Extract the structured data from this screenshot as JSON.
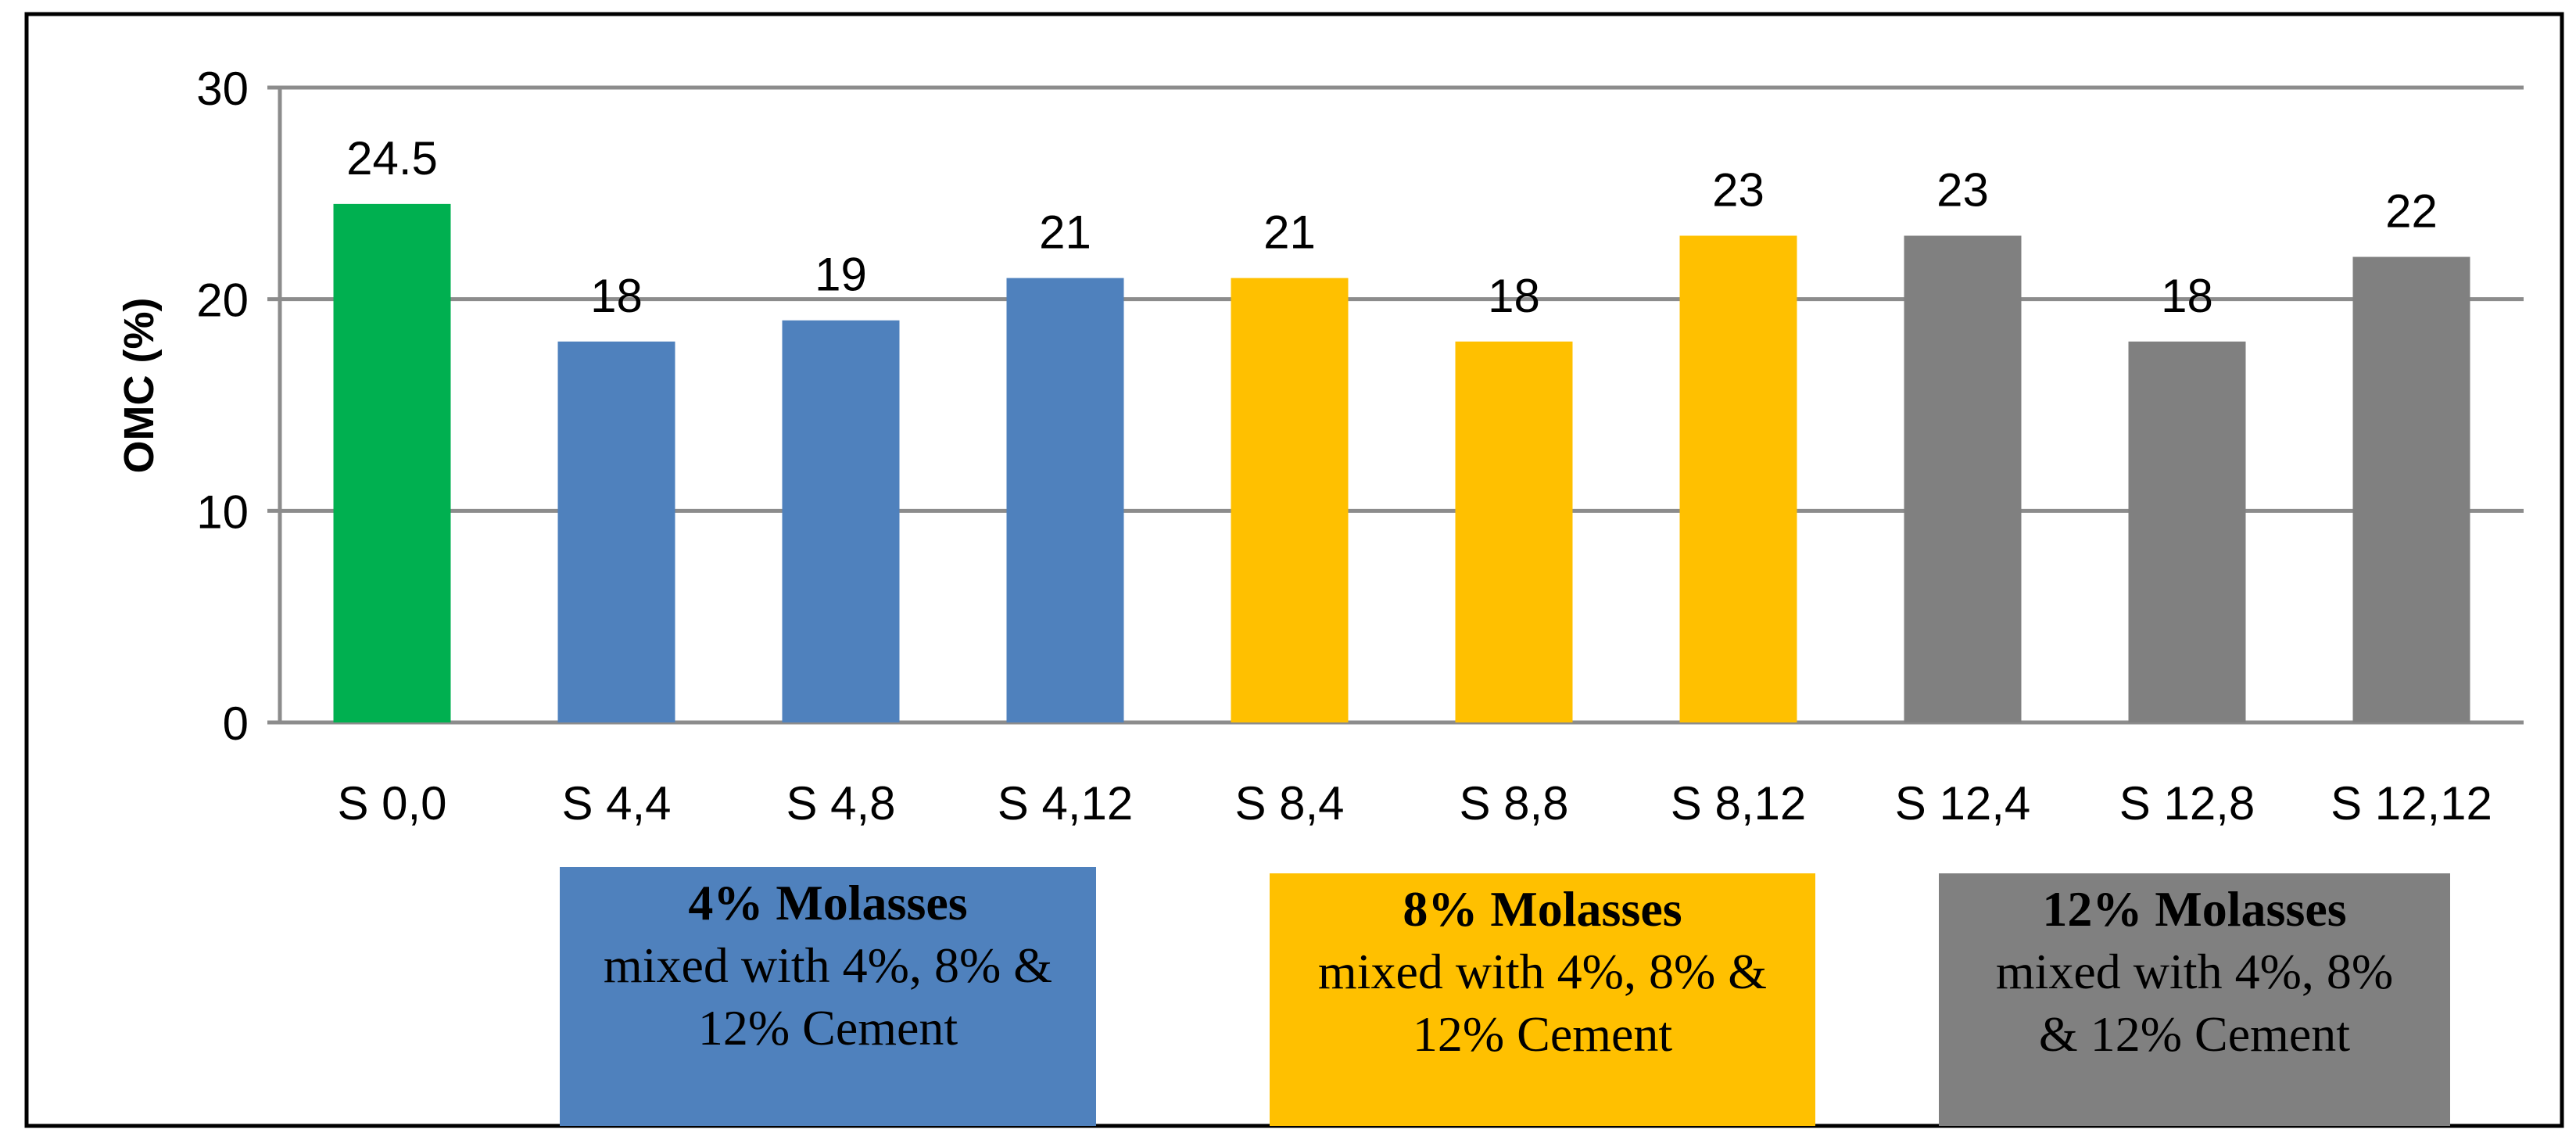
{
  "chart_data": {
    "type": "bar",
    "title": "",
    "xlabel": "",
    "ylabel": "OMC (%)",
    "ylim": [
      0,
      30
    ],
    "yticks": [
      0,
      10,
      20,
      30
    ],
    "grid": true,
    "categories": [
      "S 0,0",
      "S 4,4",
      "S 4,8",
      "S 4,12",
      "S 8,4",
      "S 8,8",
      "S 8,12",
      "S 12,4",
      "S 12,8",
      "S 12,12"
    ],
    "values": [
      24.5,
      18,
      19,
      21,
      21,
      18,
      23,
      23,
      18,
      22
    ],
    "data_labels": [
      "24.5",
      "18",
      "19",
      "21",
      "21",
      "18",
      "23",
      "23",
      "18",
      "22"
    ],
    "bar_colors": [
      "#00b050",
      "#4f81bd",
      "#4f81bd",
      "#4f81bd",
      "#ffc000",
      "#ffc000",
      "#ffc000",
      "#808080",
      "#808080",
      "#808080"
    ]
  },
  "legend": [
    {
      "title": "4%  Molasses",
      "desc": "mixed with 4%, 8% & 12% Cement",
      "color": "#4f81bd"
    },
    {
      "title": "8% Molasses",
      "desc": "mixed with 4%, 8% & 12% Cement",
      "color": "#ffc000"
    },
    {
      "title": "12% Molasses",
      "desc": "mixed with 4%, 8% & 12% Cement",
      "color": "#808080"
    }
  ]
}
